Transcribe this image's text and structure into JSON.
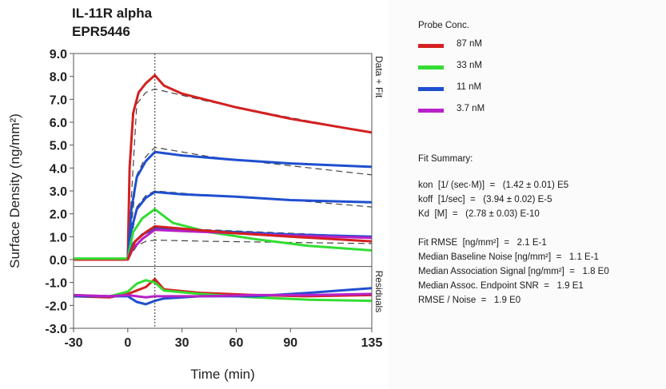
{
  "title_lines": [
    "IL-11R alpha",
    "EPR5446"
  ],
  "legend": {
    "title": "Probe Conc.",
    "items": [
      {
        "label": "87 nM",
        "color": "#d42020"
      },
      {
        "label": "33 nM",
        "color": "#33dd33"
      },
      {
        "label": "11 nM",
        "color": "#1f4fd0"
      },
      {
        "label": "3.7 nM",
        "color": "#b820c8"
      }
    ]
  },
  "fit_summary": {
    "heading": "Fit Summary:",
    "rates": [
      "kon  [1/ (sec·M)]  =   (1.42 ± 0.01) E5",
      "koff  [1/sec]  =   (3.94 ± 0.02) E-5",
      "Kd  [M]  =   (2.78 ± 0.03) E-10"
    ],
    "quality": [
      "Fit RMSE  [ng/mm²]  =   2.1 E-1",
      "Median Baseline Noise [ng/mm²]  =   1.1 E-1",
      "Median Association Signal [ng/mm²]  =   1.8 E0",
      "Median Assoc. Endpoint SNR  =   1.9 E1",
      "RMSE / Noise  =   1.9 E0"
    ]
  },
  "chart_data": {
    "type": "line",
    "xlabel": "Time (min)",
    "ylabel": "Surface Density (ng/mm²)",
    "xlim": [
      -30,
      135
    ],
    "ylim": [
      -3.0,
      9.0
    ],
    "xticks": [
      "-30",
      "0",
      "30",
      "60",
      "90",
      "135"
    ],
    "yticks": [
      "9.0",
      "8.0",
      "7.0",
      "6.0",
      "5.0",
      "4.0",
      "3.0",
      "2.0",
      "1.0",
      "0.0",
      "-1.0",
      "-2.0",
      "-3.0"
    ],
    "panel_labels": [
      "Data + Fit",
      "Residuals"
    ],
    "data_panel_ylim": [
      -0.3,
      9.0
    ],
    "residual_panel_ylim": [
      -3.0,
      -0.3
    ],
    "association_end_min": 15,
    "series": [
      {
        "name": "87 nM",
        "color": "#d42020",
        "x": [
          -30,
          -15,
          0,
          1,
          3,
          6,
          10,
          15,
          20,
          30,
          45,
          60,
          75,
          90,
          105,
          120,
          135
        ],
        "y": [
          0.0,
          0.0,
          0.0,
          4.0,
          6.4,
          7.3,
          7.7,
          8.05,
          7.6,
          7.25,
          6.95,
          6.65,
          6.4,
          6.15,
          5.95,
          5.75,
          5.55
        ]
      },
      {
        "name": "11 nM (high)",
        "color": "#1f4fd0",
        "x": [
          0,
          2,
          5,
          10,
          15,
          30,
          60,
          90,
          135
        ],
        "y": [
          0.0,
          2.2,
          3.6,
          4.3,
          4.7,
          4.55,
          4.35,
          4.2,
          4.05
        ]
      },
      {
        "name": "11 nM (mid)",
        "color": "#1f4fd0",
        "x": [
          0,
          2,
          5,
          10,
          15,
          30,
          60,
          90,
          135
        ],
        "y": [
          0.0,
          1.3,
          2.2,
          2.7,
          2.95,
          2.85,
          2.75,
          2.6,
          2.5
        ]
      },
      {
        "name": "33 nM",
        "color": "#33dd33",
        "x": [
          -30,
          0,
          3,
          8,
          15,
          25,
          45,
          70,
          100,
          135
        ],
        "y": [
          0.05,
          0.05,
          1.2,
          1.8,
          2.2,
          1.6,
          1.2,
          0.9,
          0.6,
          0.4
        ]
      },
      {
        "name": "11 nM (low)",
        "color": "#1f4fd0",
        "x": [
          0,
          3,
          8,
          15,
          30,
          60,
          90,
          135
        ],
        "y": [
          0.0,
          0.7,
          1.1,
          1.35,
          1.3,
          1.2,
          1.1,
          1.0
        ]
      },
      {
        "name": "3.7 nM",
        "color": "#b820c8",
        "x": [
          0,
          3,
          8,
          15,
          30,
          60,
          90,
          135
        ],
        "y": [
          0.0,
          0.5,
          0.9,
          1.3,
          1.25,
          1.15,
          1.05,
          0.95
        ]
      },
      {
        "name": "87 nM (low)",
        "color": "#d42020",
        "x": [
          0,
          4,
          10,
          15,
          30,
          60,
          90,
          135
        ],
        "y": [
          0.0,
          0.8,
          1.2,
          1.45,
          1.35,
          1.15,
          1.0,
          0.8
        ]
      }
    ],
    "fits": [
      {
        "x": [
          0,
          5,
          10,
          15,
          45,
          90,
          135
        ],
        "y": [
          0.0,
          6.8,
          7.3,
          7.45,
          6.9,
          6.2,
          5.55
        ]
      },
      {
        "x": [
          0,
          5,
          10,
          15,
          45,
          90,
          135
        ],
        "y": [
          0.0,
          3.7,
          4.5,
          4.9,
          4.5,
          4.1,
          3.7
        ]
      },
      {
        "x": [
          0,
          5,
          10,
          15,
          45,
          90,
          135
        ],
        "y": [
          0.0,
          2.3,
          2.8,
          3.0,
          2.8,
          2.6,
          2.3
        ]
      },
      {
        "x": [
          0,
          5,
          10,
          15,
          45,
          90,
          135
        ],
        "y": [
          0.0,
          0.9,
          1.2,
          1.35,
          1.3,
          1.15,
          1.0
        ]
      },
      {
        "x": [
          0,
          5,
          10,
          15,
          45,
          90,
          135
        ],
        "y": [
          0.0,
          0.6,
          0.8,
          0.85,
          0.8,
          0.75,
          0.7
        ]
      }
    ],
    "residuals": [
      {
        "name": "87 nM",
        "color": "#d42020",
        "x": [
          -30,
          -10,
          0,
          5,
          10,
          15,
          20,
          40,
          70,
          100,
          135
        ],
        "y": [
          -1.6,
          -1.65,
          -1.5,
          -1.35,
          -1.2,
          -0.85,
          -1.3,
          -1.45,
          -1.55,
          -1.6,
          -1.55
        ]
      },
      {
        "name": "33 nM",
        "color": "#33dd33",
        "x": [
          -30,
          -10,
          0,
          5,
          10,
          15,
          20,
          40,
          70,
          100,
          135
        ],
        "y": [
          -1.55,
          -1.6,
          -1.4,
          -1.05,
          -0.9,
          -1.0,
          -1.35,
          -1.5,
          -1.65,
          -1.75,
          -1.8
        ]
      },
      {
        "name": "11 nM",
        "color": "#1f4fd0",
        "x": [
          -30,
          -10,
          0,
          5,
          10,
          15,
          20,
          40,
          70,
          100,
          135
        ],
        "y": [
          -1.6,
          -1.6,
          -1.6,
          -1.85,
          -1.95,
          -1.8,
          -1.7,
          -1.6,
          -1.6,
          -1.45,
          -1.25
        ]
      },
      {
        "name": "3.7 nM",
        "color": "#b820c8",
        "x": [
          -30,
          -10,
          0,
          5,
          10,
          15,
          20,
          40,
          70,
          100,
          135
        ],
        "y": [
          -1.55,
          -1.6,
          -1.55,
          -1.6,
          -1.65,
          -1.6,
          -1.6,
          -1.6,
          -1.55,
          -1.55,
          -1.5
        ]
      }
    ]
  }
}
